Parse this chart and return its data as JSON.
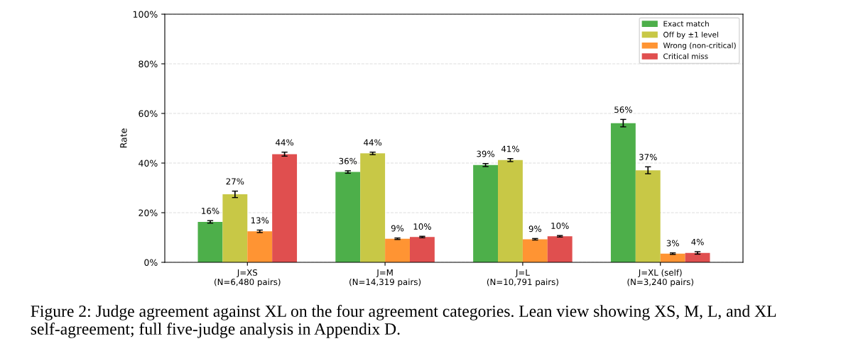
{
  "chart_data": {
    "type": "bar",
    "ylabel": "Rate",
    "categories": [
      "J=XS\n(N=6,480 pairs)",
      "J=M\n(N=14,319 pairs)",
      "J=L\n(N=10,791 pairs)",
      "J=XL (self)\n(N=3,240 pairs)"
    ],
    "series": [
      {
        "name": "Exact match",
        "color": "#4daf4a",
        "values": [
          16.3,
          36.4,
          39.2,
          56.1
        ],
        "errors": [
          0.5,
          0.5,
          0.6,
          1.5
        ],
        "value_labels": [
          "16%",
          "36%",
          "39%",
          "56%"
        ]
      },
      {
        "name": "Off by ±1 level",
        "color": "#c8c846",
        "values": [
          27.4,
          43.9,
          41.2,
          37.1
        ],
        "errors": [
          1.3,
          0.5,
          0.6,
          1.4
        ],
        "value_labels": [
          "27%",
          "44%",
          "41%",
          "37%"
        ]
      },
      {
        "name": "Wrong (non-critical)",
        "color": "#ff9433",
        "values": [
          12.5,
          9.5,
          9.3,
          3.5
        ],
        "errors": [
          0.5,
          0.3,
          0.3,
          0.3
        ],
        "value_labels": [
          "13%",
          "9%",
          "9%",
          "3%"
        ]
      },
      {
        "name": "Critical miss",
        "color": "#e04f4f",
        "values": [
          43.6,
          10.2,
          10.5,
          3.8
        ],
        "errors": [
          0.8,
          0.3,
          0.3,
          0.5
        ],
        "value_labels": [
          "44%",
          "10%",
          "10%",
          "4%"
        ]
      }
    ],
    "ylim": [
      0,
      100
    ],
    "yticks": [
      {
        "value": 0,
        "label": "0%"
      },
      {
        "value": 20,
        "label": "20%"
      },
      {
        "value": 40,
        "label": "40%"
      },
      {
        "value": 60,
        "label": "60%"
      },
      {
        "value": 80,
        "label": "80%"
      },
      {
        "value": 100,
        "label": "100%"
      }
    ],
    "grid": "y",
    "legend": "top right",
    "annotations": [
      "Figure 2: Judge agreement against XL on the four agreement categories. Lean view showing XS, M, L, and XL self-agreement; full five-judge analysis in Appendix D."
    ]
  }
}
